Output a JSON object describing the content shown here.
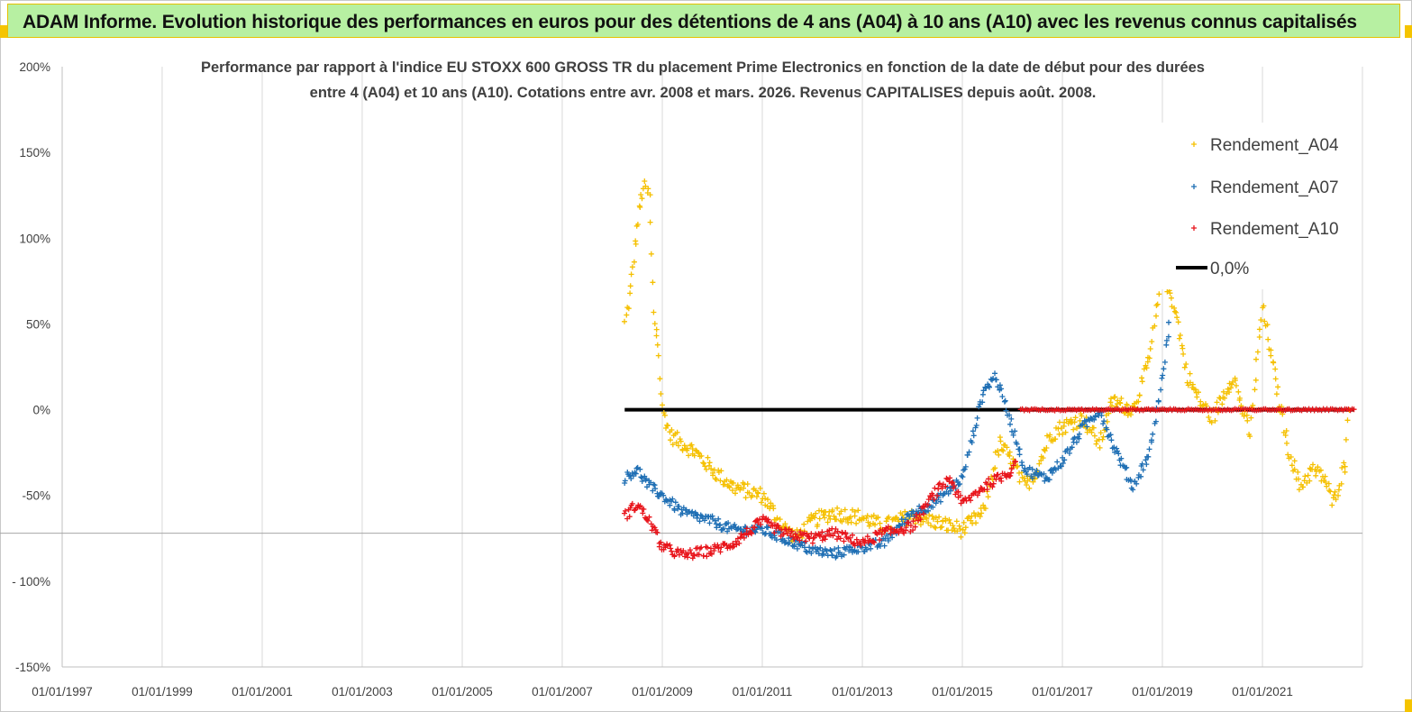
{
  "banner": {
    "title": "ADAM Informe. Evolution historique des performances en euros pour des détentions de 4 ans (A04) à 10 ans (A10) avec les revenus connus capitalisés"
  },
  "colors": {
    "banner_bg": "#b7f0a2",
    "accent_corner": "#f5c400",
    "A04": "#f5c000",
    "A07": "#1f6fb4",
    "A10": "#e8141b",
    "zero": "#000000",
    "grid": "#d9d9d9"
  },
  "chart_data": {
    "type": "scatter",
    "title_line1": "Performance par rapport à l'indice EU STOXX 600 GROSS TR  du placement Prime Electronics  en fonction de la date de début pour des durées",
    "title_line2": "entre 4 (A04) et 10 ans (A10). Cotations entre avr. 2008 et mars. 2026. Revenus CAPITALISES depuis août. 2008.",
    "xlabel": "",
    "ylabel": "",
    "x_ticks": [
      "01/01/1997",
      "01/01/1999",
      "01/01/2001",
      "01/01/2003",
      "01/01/2005",
      "01/01/2007",
      "01/01/2009",
      "01/01/2011",
      "01/01/2013",
      "01/01/2015",
      "01/01/2017",
      "01/01/2019",
      "01/01/2021"
    ],
    "y_ticks": [
      "200%",
      "150%",
      "100%",
      "50%",
      "0%",
      "-50%",
      "- 100%",
      "-150%"
    ],
    "ylim": [
      -1.5,
      2.0
    ],
    "xlim": [
      "1997-01-01",
      "2023-01-01"
    ],
    "legend_position": "top-right",
    "grid": "vertical",
    "series": [
      {
        "name": "Rendement_A04",
        "marker": "+",
        "points": [
          [
            "2008-04-01",
            0.5
          ],
          [
            "2008-05-15",
            0.7
          ],
          [
            "2008-06-15",
            0.95
          ],
          [
            "2008-07-15",
            1.15
          ],
          [
            "2008-08-15",
            1.3
          ],
          [
            "2008-10-01",
            1.25
          ],
          [
            "2008-11-01",
            0.55
          ],
          [
            "2008-12-01",
            0.4
          ],
          [
            "2009-01-01",
            0.0
          ],
          [
            "2009-03-01",
            -0.15
          ],
          [
            "2009-06-01",
            -0.2
          ],
          [
            "2009-09-01",
            -0.25
          ],
          [
            "2010-01-01",
            -0.35
          ],
          [
            "2010-06-01",
            -0.45
          ],
          [
            "2011-01-01",
            -0.5
          ],
          [
            "2011-06-01",
            -0.68
          ],
          [
            "2011-09-01",
            -0.75
          ],
          [
            "2012-01-01",
            -0.65
          ],
          [
            "2012-06-01",
            -0.6
          ],
          [
            "2013-01-01",
            -0.63
          ],
          [
            "2013-06-01",
            -0.68
          ],
          [
            "2014-01-01",
            -0.62
          ],
          [
            "2014-06-01",
            -0.65
          ],
          [
            "2015-01-01",
            -0.7
          ],
          [
            "2015-06-01",
            -0.6
          ],
          [
            "2015-10-01",
            -0.2
          ],
          [
            "2016-01-01",
            -0.3
          ],
          [
            "2016-04-01",
            -0.45
          ],
          [
            "2016-07-01",
            -0.35
          ],
          [
            "2016-10-01",
            -0.15
          ],
          [
            "2017-01-01",
            -0.1
          ],
          [
            "2017-06-01",
            -0.05
          ],
          [
            "2017-10-01",
            -0.2
          ],
          [
            "2018-01-01",
            0.05
          ],
          [
            "2018-06-01",
            0.0
          ],
          [
            "2018-10-01",
            0.3
          ],
          [
            "2019-01-01",
            0.8
          ],
          [
            "2019-04-01",
            0.6
          ],
          [
            "2019-07-01",
            0.2
          ],
          [
            "2019-10-01",
            0.05
          ],
          [
            "2020-01-01",
            -0.05
          ],
          [
            "2020-06-01",
            0.2
          ],
          [
            "2020-10-01",
            -0.15
          ],
          [
            "2021-01-01",
            0.6
          ],
          [
            "2021-04-01",
            0.2
          ],
          [
            "2021-07-01",
            -0.2
          ],
          [
            "2021-10-01",
            -0.45
          ],
          [
            "2022-01-01",
            -0.35
          ],
          [
            "2022-04-01",
            -0.4
          ],
          [
            "2022-06-01",
            -0.55
          ],
          [
            "2022-09-01",
            -0.3
          ],
          [
            "2022-10-01",
            0.15
          ]
        ]
      },
      {
        "name": "Rendement_A07",
        "marker": "+",
        "points": [
          [
            "2008-04-01",
            -0.4
          ],
          [
            "2008-07-01",
            -0.35
          ],
          [
            "2008-10-01",
            -0.45
          ],
          [
            "2009-01-01",
            -0.5
          ],
          [
            "2009-06-01",
            -0.6
          ],
          [
            "2010-01-01",
            -0.65
          ],
          [
            "2010-06-01",
            -0.7
          ],
          [
            "2011-01-01",
            -0.7
          ],
          [
            "2011-06-01",
            -0.75
          ],
          [
            "2012-01-01",
            -0.82
          ],
          [
            "2012-06-01",
            -0.84
          ],
          [
            "2013-01-01",
            -0.8
          ],
          [
            "2013-06-01",
            -0.78
          ],
          [
            "2014-01-01",
            -0.6
          ],
          [
            "2014-06-01",
            -0.55
          ],
          [
            "2015-01-01",
            -0.4
          ],
          [
            "2015-06-01",
            0.1
          ],
          [
            "2015-09-01",
            0.2
          ],
          [
            "2016-01-01",
            -0.1
          ],
          [
            "2016-04-01",
            -0.35
          ],
          [
            "2016-09-01",
            -0.4
          ],
          [
            "2017-01-01",
            -0.3
          ],
          [
            "2017-06-01",
            -0.1
          ],
          [
            "2017-10-01",
            0.0
          ],
          [
            "2018-01-01",
            -0.2
          ],
          [
            "2018-06-01",
            -0.45
          ],
          [
            "2018-10-01",
            -0.25
          ],
          [
            "2019-01-01",
            0.2
          ],
          [
            "2019-03-01",
            0.55
          ]
        ]
      },
      {
        "name": "Rendement_A10",
        "marker": "+",
        "points": [
          [
            "2008-04-01",
            -0.62
          ],
          [
            "2008-07-01",
            -0.55
          ],
          [
            "2008-10-01",
            -0.65
          ],
          [
            "2009-01-01",
            -0.8
          ],
          [
            "2009-06-01",
            -0.85
          ],
          [
            "2010-01-01",
            -0.82
          ],
          [
            "2010-06-01",
            -0.78
          ],
          [
            "2011-01-01",
            -0.65
          ],
          [
            "2011-06-01",
            -0.72
          ],
          [
            "2012-01-01",
            -0.75
          ],
          [
            "2012-06-01",
            -0.72
          ],
          [
            "2013-01-01",
            -0.78
          ],
          [
            "2013-06-01",
            -0.72
          ],
          [
            "2014-01-01",
            -0.68
          ],
          [
            "2014-06-01",
            -0.5
          ],
          [
            "2014-10-01",
            -0.4
          ],
          [
            "2015-01-01",
            -0.55
          ],
          [
            "2015-06-01",
            -0.45
          ],
          [
            "2015-10-01",
            -0.4
          ],
          [
            "2016-01-01",
            -0.35
          ],
          [
            "2016-02-01",
            -0.25
          ]
        ]
      }
    ],
    "zero_line": {
      "name": "0,0%",
      "value": 0.0,
      "from": "2008-04-01",
      "to": "2022-11-01"
    },
    "a10_flat": {
      "from": "2016-03-01",
      "to": "2022-11-01",
      "value": 0.0
    }
  }
}
